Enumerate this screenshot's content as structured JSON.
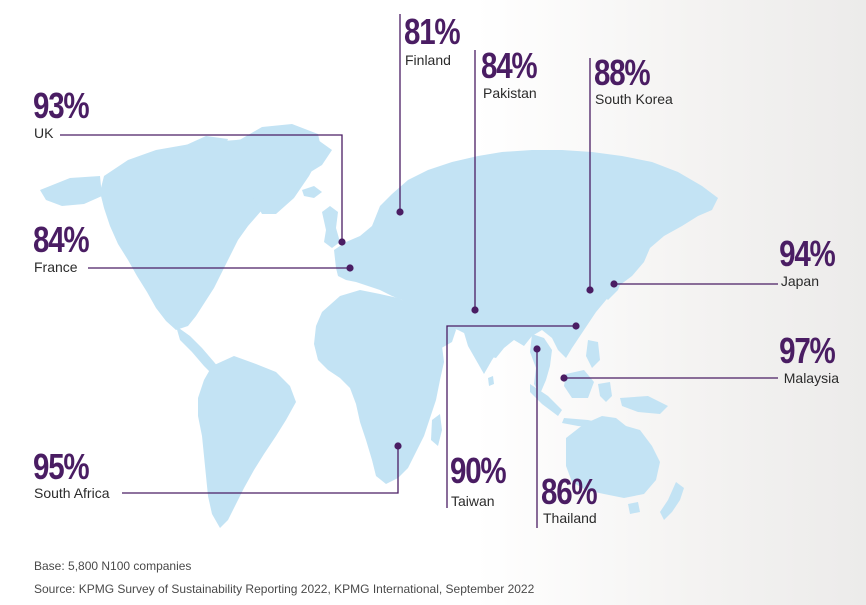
{
  "map": {
    "land_color": "#c3e3f4",
    "accent_color": "#4a1d63",
    "callouts": [
      {
        "id": "finland",
        "country": "Finland",
        "percent": "81%"
      },
      {
        "id": "pakistan",
        "country": "Pakistan",
        "percent": "84%"
      },
      {
        "id": "south-korea",
        "country": "South Korea",
        "percent": "88%"
      },
      {
        "id": "uk",
        "country": "UK",
        "percent": "93%"
      },
      {
        "id": "france",
        "country": "France",
        "percent": "84%"
      },
      {
        "id": "japan",
        "country": "Japan",
        "percent": "94%"
      },
      {
        "id": "malaysia",
        "country": "Malaysia",
        "percent": "97%"
      },
      {
        "id": "south-africa",
        "country": "South Africa",
        "percent": "95%"
      },
      {
        "id": "taiwan",
        "country": "Taiwan",
        "percent": "90%"
      },
      {
        "id": "thailand",
        "country": "Thailand",
        "percent": "86%"
      }
    ]
  },
  "footer": {
    "base": "Base: 5,800 N100 companies",
    "source": "Source: KPMG Survey of Sustainability Reporting 2022, KPMG International, September 2022"
  }
}
